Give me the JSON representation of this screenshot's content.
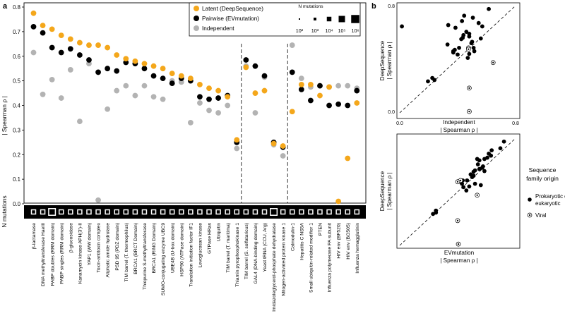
{
  "panel_labels": {
    "a": "a",
    "b": "b"
  },
  "colors": {
    "latent": "#f4a71b",
    "pairwise": "#000000",
    "independent": "#b3b3b3",
    "black": "#000000"
  },
  "chart_data": [
    {
      "id": "panel-a",
      "type": "scatter",
      "ylabel": "| Spearman ρ |",
      "ylim": [
        0,
        0.8
      ],
      "yticks": [
        "0.0",
        "0.1",
        "0.2",
        "0.3",
        "0.4",
        "0.5",
        "0.6",
        "0.7",
        "0.8"
      ],
      "nmut_label": "N mutations",
      "legend": {
        "entries": [
          "Latent (DeepSequence)",
          "Pairwise (EVmutation)",
          "Independent"
        ],
        "size_title": "N mutations",
        "size_labels": [
          "10²",
          "10³",
          "10⁴",
          "10⁵",
          "10⁶"
        ]
      },
      "categories": [
        "β-lactamase",
        "DNA methyltransferase HaeIII",
        "PABP doubles (RRM domain)",
        "PABP singles (RRM domain)",
        "β-glucosidase",
        "Kanamycin kinase APH(3')-II",
        "YAP1 (WW domain)",
        "Toxin-antitoxin complex",
        "Aliphatic amide hydrolase",
        "PSD 95 (PDZ domain)",
        "TIM barrel (T. thermophilus)",
        "BRCA1 (BRCT Domain)",
        "Thiopurine S-methyltransferase",
        "BRCA1 (RING Domain)",
        "SUMO-conjugating enzyme UBC9",
        "UBE4B (U-box domain)",
        "HSP90 (ATPase domain)",
        "Translation initiation factor IF1",
        "Levoglucosan kinase",
        "GTPase HRas",
        "Ubiquitin",
        "TIM barrel (T. maritima)",
        "Thiamin pyrophosphokinase 1",
        "TIM barrel (S. solfataricus)",
        "GAL4 (DNA-binding domain)",
        "Yeast tRNA (CCU, Arg)",
        "Imidazoleglycerol-phosphate dehydratase",
        "Mitogen-activated protein kinase 1",
        "Calmodulin-1",
        "Hepatitis C NS5A",
        "Small ubiquitin-related modifier 1",
        "PTEN",
        "Influenza polymerase PA subunit",
        "HIV env (BF520)",
        "HIV env (BG505)",
        "Influenza hemagglutinin"
      ],
      "separators_after": [
        22,
        27
      ],
      "series": [
        {
          "name": "Latent (DeepSequence)",
          "values": [
            0.775,
            0.725,
            0.71,
            0.685,
            0.67,
            0.655,
            0.645,
            0.645,
            0.635,
            0.605,
            0.59,
            0.58,
            0.57,
            0.56,
            0.55,
            0.53,
            0.52,
            0.51,
            0.485,
            0.47,
            0.46,
            0.435,
            0.26,
            0.555,
            0.45,
            0.46,
            0.245,
            0.235,
            0.375,
            0.485,
            0.485,
            0.44,
            0.475,
            0.01,
            0.185,
            0.41
          ]
        },
        {
          "name": "Pairwise (EVmutation)",
          "values": [
            0.72,
            0.695,
            0.635,
            0.615,
            0.63,
            0.605,
            0.585,
            0.535,
            0.55,
            0.54,
            0.575,
            0.57,
            0.55,
            0.52,
            0.51,
            0.49,
            0.51,
            0.5,
            0.435,
            0.425,
            0.43,
            0.44,
            0.25,
            0.585,
            0.56,
            0.52,
            0.25,
            0.23,
            0.535,
            0.465,
            0.42,
            0.48,
            0.4,
            0.405,
            0.4,
            0.46
          ]
        },
        {
          "name": "Independent",
          "values": [
            0.615,
            0.445,
            0.505,
            0.43,
            0.545,
            0.335,
            0.57,
            0.015,
            0.385,
            0.46,
            0.48,
            0.44,
            0.48,
            0.435,
            0.425,
            0.5,
            0.495,
            0.33,
            0.41,
            0.38,
            0.37,
            0.4,
            0.225,
            0.56,
            0.37,
            0.515,
            0.24,
            0.195,
            0.645,
            0.51,
            0.475,
            0.48,
            0.475,
            0.48,
            0.48,
            0.47
          ]
        }
      ],
      "n_mutations_size_code": [
        2,
        2,
        3,
        2,
        2,
        2,
        2,
        2,
        2,
        2,
        2,
        2,
        2,
        2,
        2,
        2,
        2,
        2,
        2,
        2,
        2,
        2,
        2,
        2,
        2,
        2,
        3,
        2,
        2,
        2,
        2,
        2,
        2,
        2,
        2,
        2
      ]
    },
    {
      "id": "panel-b-top",
      "type": "scatter",
      "xlabel": "| Spearman ρ |",
      "xlabel_top": "Independent",
      "ylabel": "| Spearman ρ |",
      "ylabel_top": "DeepSequence",
      "xlim": [
        0,
        0.8
      ],
      "ylim": [
        0,
        0.8
      ],
      "tick_labels": {
        "origin": "0.0",
        "xmax": "0.8",
        "ymax": "0.8"
      },
      "diagonal": true,
      "points": [
        {
          "x": 0.615,
          "y": 0.775,
          "viral": false
        },
        {
          "x": 0.445,
          "y": 0.725,
          "viral": false
        },
        {
          "x": 0.505,
          "y": 0.71,
          "viral": false
        },
        {
          "x": 0.43,
          "y": 0.685,
          "viral": false
        },
        {
          "x": 0.545,
          "y": 0.67,
          "viral": false
        },
        {
          "x": 0.335,
          "y": 0.655,
          "viral": false
        },
        {
          "x": 0.57,
          "y": 0.645,
          "viral": false
        },
        {
          "x": 0.015,
          "y": 0.645,
          "viral": false
        },
        {
          "x": 0.385,
          "y": 0.635,
          "viral": false
        },
        {
          "x": 0.46,
          "y": 0.605,
          "viral": false
        },
        {
          "x": 0.48,
          "y": 0.59,
          "viral": false
        },
        {
          "x": 0.44,
          "y": 0.58,
          "viral": false
        },
        {
          "x": 0.48,
          "y": 0.57,
          "viral": false
        },
        {
          "x": 0.435,
          "y": 0.56,
          "viral": false
        },
        {
          "x": 0.425,
          "y": 0.55,
          "viral": false
        },
        {
          "x": 0.5,
          "y": 0.53,
          "viral": false
        },
        {
          "x": 0.495,
          "y": 0.52,
          "viral": false
        },
        {
          "x": 0.33,
          "y": 0.51,
          "viral": false
        },
        {
          "x": 0.41,
          "y": 0.485,
          "viral": false
        },
        {
          "x": 0.38,
          "y": 0.47,
          "viral": false
        },
        {
          "x": 0.37,
          "y": 0.46,
          "viral": false
        },
        {
          "x": 0.4,
          "y": 0.435,
          "viral": false
        },
        {
          "x": 0.225,
          "y": 0.26,
          "viral": false
        },
        {
          "x": 0.56,
          "y": 0.555,
          "viral": false
        },
        {
          "x": 0.37,
          "y": 0.45,
          "viral": false
        },
        {
          "x": 0.515,
          "y": 0.46,
          "viral": false
        },
        {
          "x": 0.24,
          "y": 0.245,
          "viral": false
        },
        {
          "x": 0.195,
          "y": 0.235,
          "viral": false
        },
        {
          "x": 0.645,
          "y": 0.375,
          "viral": true
        },
        {
          "x": 0.51,
          "y": 0.485,
          "viral": false
        },
        {
          "x": 0.475,
          "y": 0.485,
          "viral": true
        },
        {
          "x": 0.48,
          "y": 0.44,
          "viral": false
        },
        {
          "x": 0.475,
          "y": 0.475,
          "viral": true
        },
        {
          "x": 0.48,
          "y": 0.01,
          "viral": true
        },
        {
          "x": 0.48,
          "y": 0.185,
          "viral": true
        },
        {
          "x": 0.47,
          "y": 0.41,
          "viral": false
        }
      ]
    },
    {
      "id": "panel-b-bottom",
      "type": "scatter",
      "xlabel": "| Spearman ρ |",
      "xlabel_top": "EVmutation",
      "ylabel": "| Spearman ρ |",
      "ylabel_top": "DeepSequence",
      "xlim": [
        0,
        0.8
      ],
      "ylim": [
        0,
        0.8
      ],
      "tick_labels": {
        "origin": "0.0",
        "xmax": "0.8",
        "ymax": "0.8"
      },
      "diagonal": true,
      "points": [
        {
          "x": 0.72,
          "y": 0.775,
          "viral": false
        },
        {
          "x": 0.695,
          "y": 0.725,
          "viral": false
        },
        {
          "x": 0.635,
          "y": 0.71,
          "viral": false
        },
        {
          "x": 0.615,
          "y": 0.685,
          "viral": false
        },
        {
          "x": 0.63,
          "y": 0.67,
          "viral": false
        },
        {
          "x": 0.605,
          "y": 0.655,
          "viral": false
        },
        {
          "x": 0.585,
          "y": 0.645,
          "viral": false
        },
        {
          "x": 0.535,
          "y": 0.645,
          "viral": false
        },
        {
          "x": 0.55,
          "y": 0.635,
          "viral": false
        },
        {
          "x": 0.54,
          "y": 0.605,
          "viral": false
        },
        {
          "x": 0.575,
          "y": 0.59,
          "viral": false
        },
        {
          "x": 0.57,
          "y": 0.58,
          "viral": false
        },
        {
          "x": 0.55,
          "y": 0.57,
          "viral": false
        },
        {
          "x": 0.52,
          "y": 0.56,
          "viral": false
        },
        {
          "x": 0.51,
          "y": 0.55,
          "viral": false
        },
        {
          "x": 0.49,
          "y": 0.53,
          "viral": false
        },
        {
          "x": 0.51,
          "y": 0.52,
          "viral": false
        },
        {
          "x": 0.5,
          "y": 0.51,
          "viral": false
        },
        {
          "x": 0.435,
          "y": 0.485,
          "viral": false
        },
        {
          "x": 0.425,
          "y": 0.47,
          "viral": false
        },
        {
          "x": 0.43,
          "y": 0.46,
          "viral": false
        },
        {
          "x": 0.44,
          "y": 0.435,
          "viral": false
        },
        {
          "x": 0.25,
          "y": 0.26,
          "viral": false
        },
        {
          "x": 0.585,
          "y": 0.555,
          "viral": false
        },
        {
          "x": 0.56,
          "y": 0.45,
          "viral": false
        },
        {
          "x": 0.52,
          "y": 0.46,
          "viral": false
        },
        {
          "x": 0.25,
          "y": 0.245,
          "viral": false
        },
        {
          "x": 0.23,
          "y": 0.235,
          "viral": false
        },
        {
          "x": 0.535,
          "y": 0.375,
          "viral": true
        },
        {
          "x": 0.465,
          "y": 0.485,
          "viral": false
        },
        {
          "x": 0.42,
          "y": 0.485,
          "viral": true
        },
        {
          "x": 0.48,
          "y": 0.44,
          "viral": false
        },
        {
          "x": 0.4,
          "y": 0.475,
          "viral": true
        },
        {
          "x": 0.405,
          "y": 0.01,
          "viral": true
        },
        {
          "x": 0.4,
          "y": 0.185,
          "viral": true
        },
        {
          "x": 0.46,
          "y": 0.41,
          "viral": false
        }
      ]
    }
  ],
  "family_legend": {
    "title_line1": "Sequence",
    "title_line2": "family origin",
    "prokaryotic_line1": "Prokaryotic or",
    "prokaryotic_line2": "eukaryotic",
    "viral": "Viral"
  }
}
